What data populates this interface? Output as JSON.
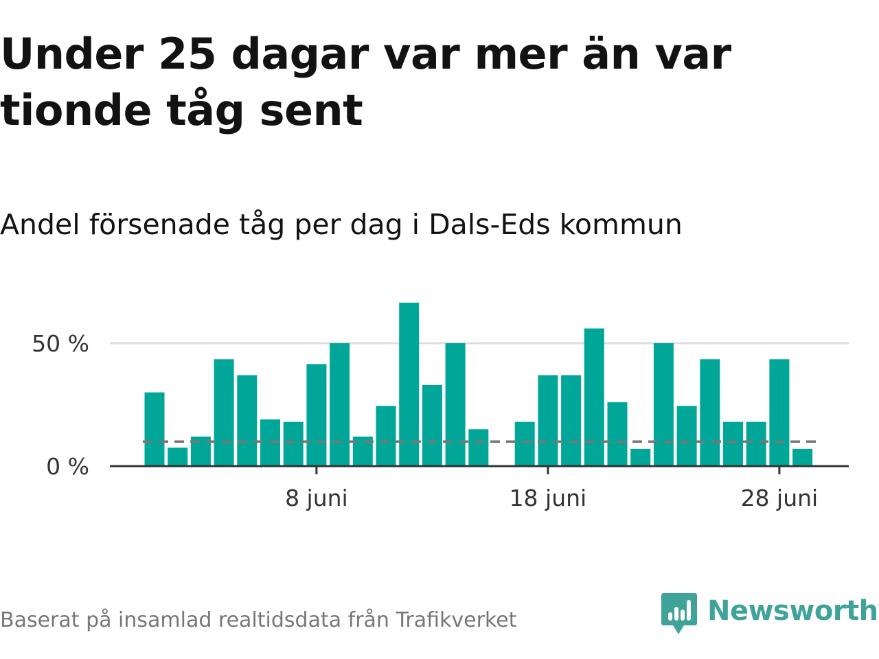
{
  "title": "Under 25 dagar var mer än var tionde tåg sent",
  "subtitle": "Andel försenade tåg per dag i Dals-Eds kommun",
  "footer": {
    "source": "Baserat på insamlad realtidsdata från Trafikverket",
    "brand": "Newsworthy"
  },
  "colors": {
    "bar": "#00a698",
    "reference_line": "#777777",
    "gridline": "#dddddd",
    "axis": "#333333",
    "brand": "#3fa39a"
  },
  "chart_data": {
    "type": "bar",
    "title": "Andel försenade tåg per dag i Dals-Eds kommun",
    "xlabel": "",
    "ylabel": "",
    "x_tick_labels": [
      {
        "day": 8,
        "label": "8 juni"
      },
      {
        "day": 18,
        "label": "18 juni"
      },
      {
        "day": 28,
        "label": "28 juni"
      }
    ],
    "y_ticks": [
      {
        "value": 0,
        "label": "0 %"
      },
      {
        "value": 50,
        "label": "50 %"
      }
    ],
    "ylim": [
      0,
      70
    ],
    "xlim": [
      0,
      32
    ],
    "grid": true,
    "reference_line": {
      "value": 10,
      "style": "dashed"
    },
    "categories": [
      "1 juni",
      "2 juni",
      "3 juni",
      "4 juni",
      "5 juni",
      "6 juni",
      "7 juni",
      "8 juni",
      "9 juni",
      "10 juni",
      "11 juni",
      "12 juni",
      "13 juni",
      "14 juni",
      "15 juni",
      "16 juni",
      "17 juni",
      "18 juni",
      "19 juni",
      "20 juni",
      "21 juni",
      "22 juni",
      "23 juni",
      "24 juni",
      "25 juni",
      "26 juni",
      "27 juni",
      "28 juni",
      "29 juni",
      "30 juni"
    ],
    "days": [
      1,
      2,
      3,
      4,
      5,
      6,
      7,
      8,
      9,
      10,
      11,
      12,
      13,
      14,
      15,
      16,
      17,
      18,
      19,
      20,
      21,
      22,
      23,
      24,
      25,
      26,
      27,
      28,
      29,
      30
    ],
    "values": [
      30,
      7.5,
      12,
      43.5,
      37,
      19,
      18,
      41.5,
      50,
      12,
      24.5,
      66.5,
      33,
      50,
      15,
      0,
      18,
      37,
      37,
      56,
      26,
      7,
      50,
      24.5,
      43.5,
      18,
      18,
      43.5,
      7,
      0
    ]
  }
}
